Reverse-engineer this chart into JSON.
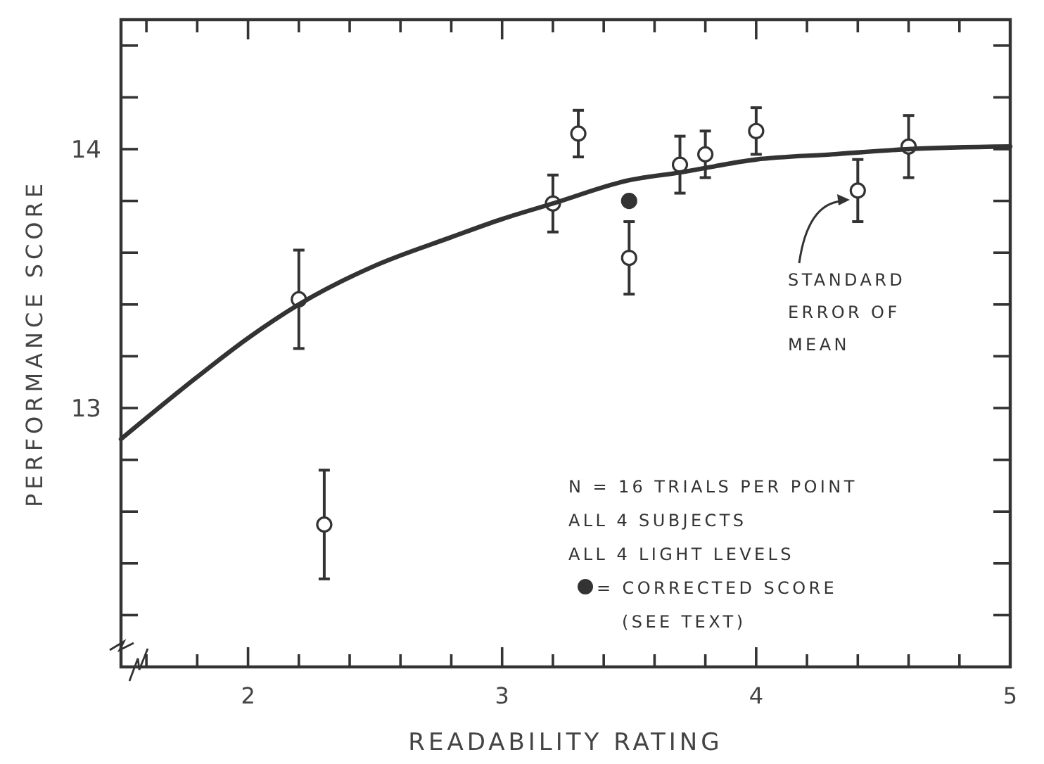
{
  "chart_data": {
    "type": "scatter",
    "xlabel": "READABILITY RATING",
    "ylabel": "PERFORMANCE SCORE",
    "xlim": [
      1.5,
      5
    ],
    "ylim": [
      12,
      14.5
    ],
    "xticks": [
      {
        "value": 1.6,
        "label": null
      },
      {
        "value": 1.8,
        "label": null
      },
      2,
      {
        "value": 2.2,
        "label": null
      },
      {
        "value": 2.4,
        "label": null
      },
      {
        "value": 2.6,
        "label": null
      },
      {
        "value": 2.8,
        "label": null
      },
      3,
      {
        "value": 3.2,
        "label": null
      },
      {
        "value": 3.4,
        "label": null
      },
      {
        "value": 3.6,
        "label": null
      },
      {
        "value": 3.8,
        "label": null
      },
      4,
      {
        "value": 4.2,
        "label": null
      },
      {
        "value": 4.4,
        "label": null
      },
      {
        "value": 4.6,
        "label": null
      },
      {
        "value": 4.8,
        "label": null
      },
      5
    ],
    "yticks": [
      {
        "value": 12.2,
        "label": null
      },
      {
        "value": 12.4,
        "label": null
      },
      {
        "value": 12.6,
        "label": null
      },
      {
        "value": 12.8,
        "label": null
      },
      13,
      {
        "value": 13.2,
        "label": null
      },
      {
        "value": 13.4,
        "label": null
      },
      {
        "value": 13.6,
        "label": null
      },
      {
        "value": 13.8,
        "label": null
      },
      14,
      {
        "value": 14.2,
        "label": null
      },
      {
        "value": 14.4,
        "label": null
      }
    ],
    "legend": "bottom right",
    "series": [
      {
        "marker": "circle",
        "color": "#333333",
        "x": [
          2.2,
          2.3,
          3.2,
          3.3,
          3.5,
          3.7,
          3.8,
          4.0,
          4.4,
          4.6
        ],
        "values": [
          13.42,
          12.55,
          13.79,
          14.06,
          13.58,
          13.94,
          13.98,
          14.07,
          13.84,
          14.01
        ],
        "errors": [
          0.19,
          0.21,
          0.11,
          0.09,
          0.14,
          0.11,
          0.09,
          0.09,
          0.12,
          0.12
        ]
      },
      {
        "marker": "circle",
        "name": "= CORRECTED SCORE",
        "color": "#333333",
        "x": [
          3.5
        ],
        "values": [
          13.8
        ]
      },
      {
        "type": "line",
        "line_style": "solid",
        "color": "#333333",
        "x": [
          1.5,
          1.8,
          2.0,
          2.2,
          2.5,
          2.8,
          3.0,
          3.2,
          3.5,
          3.7,
          4.0,
          4.3,
          4.6,
          5.0
        ],
        "values": [
          12.88,
          13.12,
          13.27,
          13.4,
          13.55,
          13.66,
          13.73,
          13.79,
          13.88,
          13.91,
          13.96,
          13.98,
          14.0,
          14.01
        ]
      }
    ],
    "annotations": [
      "STANDARD ERROR OF MEAN",
      "N = 16 TRIALS PER POINT",
      "ALL 4 SUBJECTS",
      "ALL 4 LIGHT LEVELS",
      "(SEE TEXT)"
    ]
  }
}
